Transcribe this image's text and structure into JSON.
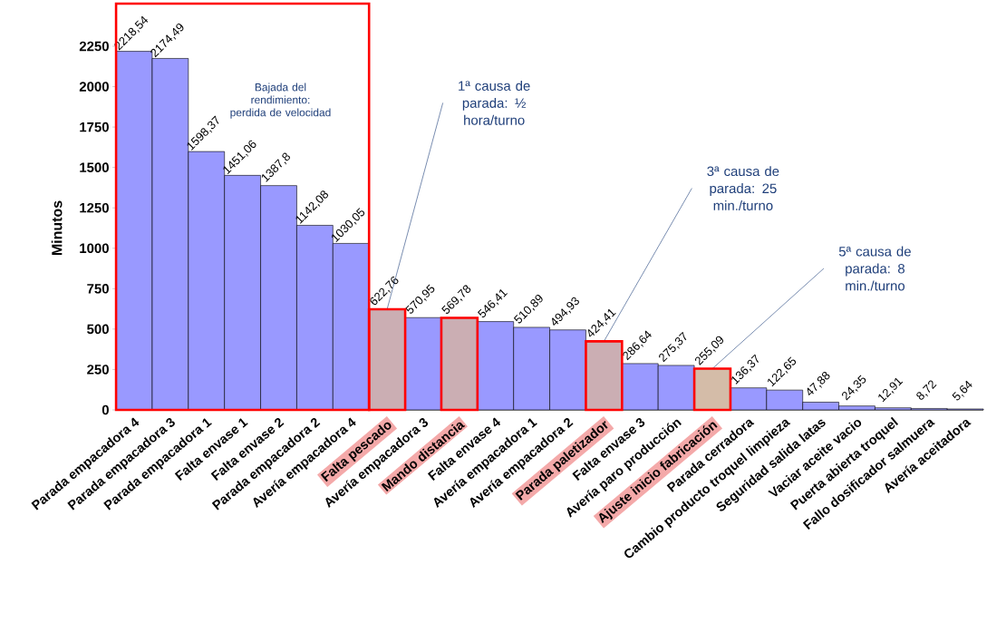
{
  "chart_data": {
    "type": "bar",
    "ylabel": "Minutos",
    "categories": [
      "Parada empacadora 4",
      "Parada empacadora 3",
      "Parada empacadora 1",
      "Falta envase 1",
      "Falta envase 2",
      "Parada empacadora 2",
      "Avería empacadora 4",
      "Falta pescado",
      "Avería empacadora 3",
      "Mando distancia",
      "Falta envase 4",
      "Avería empacadora 1",
      "Avería empacadora 2",
      "Parada paletizador",
      "Falta envase 3",
      "Avería paro producción",
      "Ajuste inicio fabricación",
      "Parada cerradora",
      "Cambio producto troquel limpieza",
      "Seguridad salida latas",
      "Vaciar aceite vacio",
      "Puerta abierta troquel",
      "Fallo dosificador salmuera",
      "Avería aceitadora"
    ],
    "values": [
      2218.54,
      2174.49,
      1598.37,
      1451.06,
      1387.8,
      1142.08,
      1030.05,
      622.76,
      570.95,
      569.78,
      546.41,
      510.89,
      494.93,
      424.41,
      286.64,
      275.37,
      255.09,
      136.37,
      122.65,
      47.88,
      24.35,
      12.91,
      8.72,
      5.64
    ],
    "value_labels": [
      "2218,54",
      "2174,49",
      "1598,37",
      "1451,06",
      "1387,8",
      "1142,08",
      "1030,05",
      "622,76",
      "570,95",
      "569,78",
      "546,41",
      "510,89",
      "494,93",
      "424,41",
      "286,64",
      "275,37",
      "255,09",
      "136,37",
      "122,65",
      "47,88",
      "24,35",
      "12,91",
      "8,72",
      "5,64"
    ],
    "colors": [
      "#9999ff",
      "#9999ff",
      "#9999ff",
      "#9999ff",
      "#9999ff",
      "#9999ff",
      "#9999ff",
      "#cbaeb3",
      "#9999ff",
      "#cbaeb3",
      "#9999ff",
      "#9999ff",
      "#9999ff",
      "#cbaeb3",
      "#9999ff",
      "#9999ff",
      "#d4bca8",
      "#9999ff",
      "#9999ff",
      "#9999ff",
      "#9999ff",
      "#9999ff",
      "#9999ff",
      "#9999ff"
    ],
    "ylim": [
      0,
      2250
    ],
    "yticks": [
      0,
      250,
      500,
      750,
      1000,
      1250,
      1500,
      1750,
      2000,
      2250
    ],
    "annotations": [
      "Bajada del rendimiento: perdida de velocidad",
      {
        "text": "1ª causa de parada: ½ hora/turno",
        "x": "Falta pescado",
        "y": 622.76
      },
      {
        "text": "3ª causa de parada: 25 min./turno",
        "x": "Parada paletizador",
        "y": 424.41
      },
      {
        "text": "5ª causa de parada: 8 min./turno",
        "x": "Ajuste inicio fabricación",
        "y": 255.09
      }
    ]
  }
}
